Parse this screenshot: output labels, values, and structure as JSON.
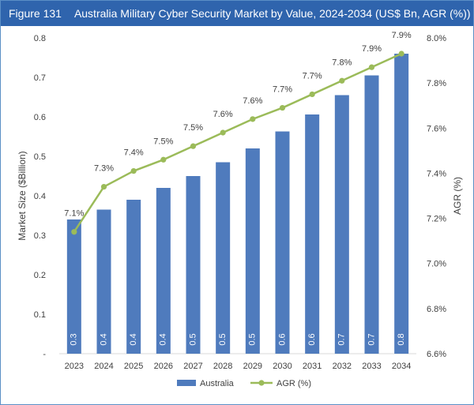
{
  "header": {
    "figure_label": "Figure 131",
    "title": "Australia Military Cyber Security Market by Value, 2024-2034 (US$ Bn, AGR (%))"
  },
  "chart_data": {
    "type": "bar",
    "categories": [
      "2023",
      "2024",
      "2025",
      "2026",
      "2027",
      "2028",
      "2029",
      "2030",
      "2031",
      "2032",
      "2033",
      "2034"
    ],
    "series": [
      {
        "name": "Australia",
        "type": "bar",
        "axis": "left",
        "color": "#4f7bbd",
        "values": [
          0.34,
          0.365,
          0.39,
          0.42,
          0.45,
          0.485,
          0.52,
          0.563,
          0.606,
          0.655,
          0.705,
          0.76
        ],
        "data_labels": [
          "0.3",
          "0.4",
          "0.4",
          "0.4",
          "0.5",
          "0.5",
          "0.5",
          "0.6",
          "0.6",
          "0.7",
          "0.7",
          "0.8"
        ]
      },
      {
        "name": "AGR (%)",
        "type": "line",
        "axis": "right",
        "color": "#9bbb59",
        "values": [
          7.14,
          7.34,
          7.41,
          7.46,
          7.52,
          7.58,
          7.64,
          7.69,
          7.75,
          7.81,
          7.87,
          7.93
        ],
        "data_labels": [
          "7.1%",
          "7.3%",
          "7.4%",
          "7.5%",
          "7.5%",
          "7.6%",
          "7.6%",
          "7.7%",
          "7.7%",
          "7.8%",
          "7.9%",
          "7.9%"
        ]
      }
    ],
    "ylabel": "Market Size ($Billion)",
    "ylim": [
      0,
      0.8
    ],
    "yticks": [
      "-",
      "0.1",
      "0.2",
      "0.3",
      "0.4",
      "0.5",
      "0.6",
      "0.7",
      "0.8"
    ],
    "y2label": "AGR (%)",
    "y2lim": [
      6.6,
      8.0
    ],
    "y2ticks": [
      "6.6%",
      "6.8%",
      "7.0%",
      "7.2%",
      "7.4%",
      "7.6%",
      "7.8%",
      "8.0%"
    ],
    "grid": false,
    "legend_position": "bottom"
  }
}
